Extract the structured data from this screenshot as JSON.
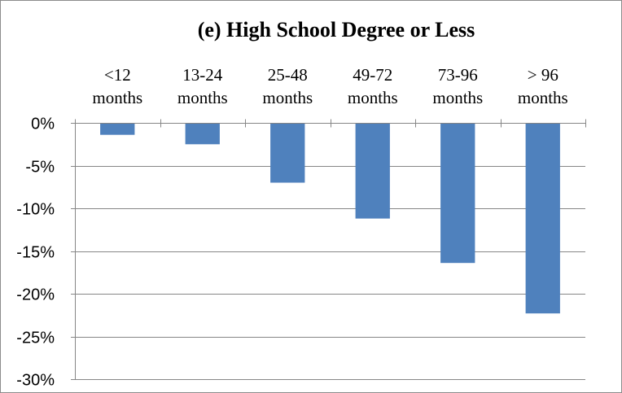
{
  "chart_data": {
    "type": "bar",
    "title": "(e) High School Degree or Less",
    "xlabel": "",
    "ylabel": "",
    "categories": [
      [
        "<12",
        "months"
      ],
      [
        "13-24",
        "months"
      ],
      [
        "25-48",
        "months"
      ],
      [
        "49-72",
        "months"
      ],
      [
        "73-96",
        "months"
      ],
      [
        "> 96",
        "months"
      ]
    ],
    "values": [
      -1.4,
      -2.5,
      -7.0,
      -11.2,
      -16.4,
      -22.3
    ],
    "ylim": [
      -30,
      0
    ],
    "yticks": [
      0,
      -5,
      -10,
      -15,
      -20,
      -25,
      -30
    ],
    "ytick_labels": [
      "0%",
      "-5%",
      "-10%",
      "-15%",
      "-20%",
      "-25%",
      "-30%"
    ],
    "grid": true,
    "legend": "none",
    "category_labels_position": "top",
    "colors": {
      "bar": "#4f81bd",
      "grid": "#868686",
      "axis": "#868686"
    }
  }
}
